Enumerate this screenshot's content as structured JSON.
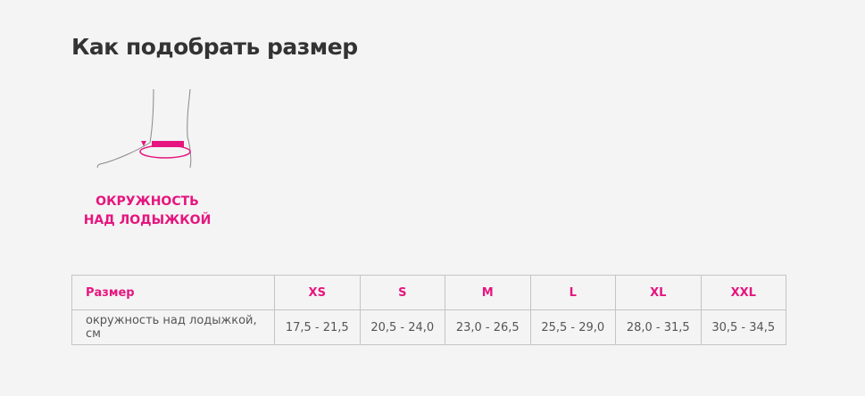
{
  "title": "Как подобрать размер",
  "illustration": {
    "caption_line1": "ОКРУЖНОСТЬ",
    "caption_line2": "НАД ЛОДЫЖКОЙ",
    "accent_color": "#e6157f"
  },
  "table": {
    "header_label": "Размер",
    "sizes": [
      "XS",
      "S",
      "M",
      "L",
      "XL",
      "XXL"
    ],
    "row_label": "окружность над лодыжкой, см",
    "values": [
      "17,5 - 21,5",
      "20,5 - 24,0",
      "23,0 - 26,5",
      "25,5 - 29,0",
      "28,0 - 31,5",
      "30,5 - 34,5"
    ]
  }
}
